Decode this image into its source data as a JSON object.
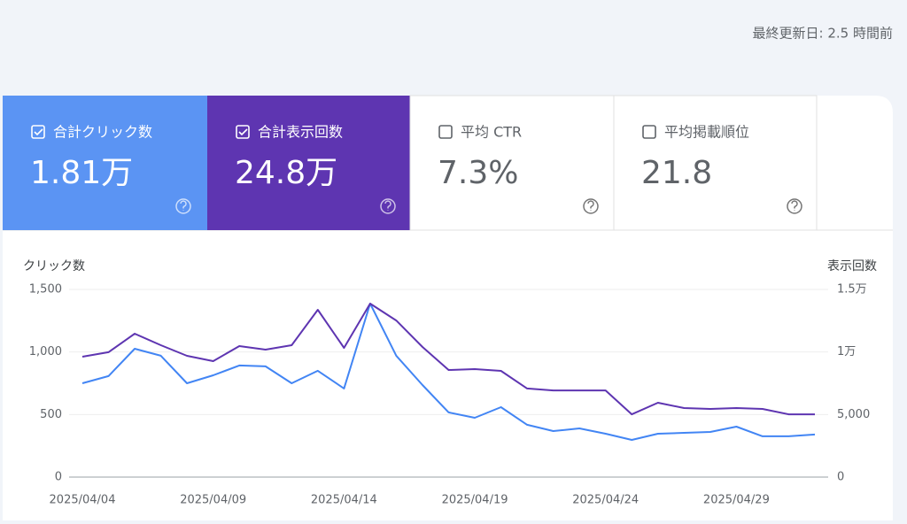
{
  "header": {
    "updated": "最終更新日: 2.5 時間前"
  },
  "cards": [
    {
      "label": "合計クリック数",
      "value": "1.81万",
      "checked": true,
      "color": "#5b94f3"
    },
    {
      "label": "合計表示回数",
      "value": "24.8万",
      "checked": true,
      "color": "#5e35b1"
    },
    {
      "label": "平均 CTR",
      "value": "7.3%",
      "checked": false,
      "color": "#ffffff"
    },
    {
      "label": "平均掲載順位",
      "value": "21.8",
      "checked": false,
      "color": "#ffffff"
    }
  ],
  "chart_data": {
    "type": "line",
    "y_label": "クリック数",
    "y2_label": "表示回数",
    "categories": [
      "2025/04/04",
      null,
      null,
      null,
      null,
      "2025/04/09",
      null,
      null,
      null,
      null,
      "2025/04/14",
      null,
      null,
      null,
      null,
      "2025/04/19",
      null,
      null,
      null,
      null,
      "2025/04/24",
      null,
      null,
      null,
      null,
      "2025/04/29",
      null,
      null,
      null
    ],
    "series": [
      {
        "name": "合計クリック数",
        "color": "#4285f4",
        "values": [
          750,
          807,
          1026,
          970,
          750,
          814,
          892,
          885,
          750,
          850,
          708,
          1387,
          970,
          736,
          517,
          474,
          559,
          418,
          368,
          389,
          347,
          297,
          347,
          354,
          361,
          403,
          326,
          326,
          340
        ]
      },
      {
        "name": "合計表示回数",
        "color": "#5e35b1",
        "axis": "y2",
        "values": [
          9620,
          9980,
          11460,
          10540,
          9690,
          9270,
          10470,
          10190,
          10540,
          13370,
          10330,
          13870,
          12520,
          10400,
          8560,
          8630,
          8490,
          7080,
          6930,
          6930,
          6930,
          5020,
          5940,
          5520,
          5450,
          5520,
          5450,
          5020,
          5020
        ]
      }
    ],
    "ylim": [
      0,
      1500
    ],
    "yticks": [
      0,
      500,
      {
        "value": 1000,
        "label": "1,000"
      },
      {
        "value": 1500,
        "label": "1,500"
      }
    ],
    "y2lim": [
      0,
      15000
    ],
    "y2ticks": [
      0,
      {
        "value": 5000,
        "label": "5,000"
      },
      {
        "value": 10000,
        "label": "1万"
      },
      {
        "value": 15000,
        "label": "1.5万"
      }
    ],
    "grid": true
  }
}
